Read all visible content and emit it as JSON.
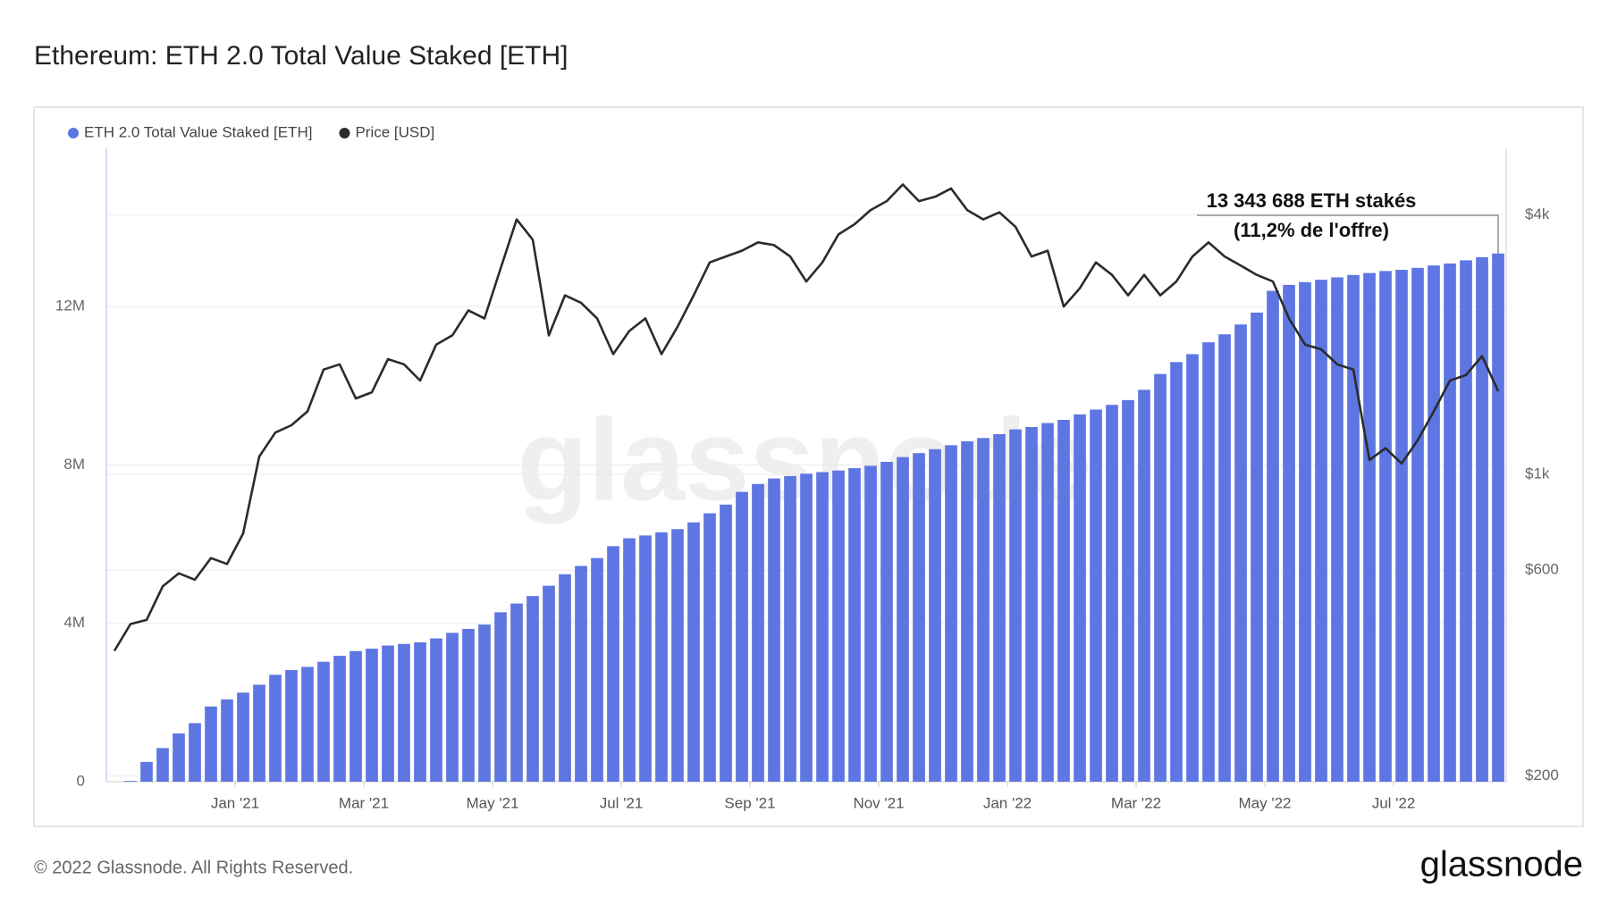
{
  "chart_data": {
    "type": "bar",
    "title": "Ethereum: ETH 2.0 Total Value Staked [ETH]",
    "categories": [
      null,
      null,
      null,
      null,
      null,
      null,
      null,
      null,
      "Jan '21",
      null,
      null,
      null,
      null,
      null,
      null,
      null,
      "Mar '21",
      null,
      null,
      null,
      null,
      null,
      null,
      null,
      "May '21",
      null,
      null,
      null,
      null,
      null,
      null,
      null,
      "Jul '21",
      null,
      null,
      null,
      null,
      null,
      null,
      null,
      "Sep '21",
      null,
      null,
      null,
      null,
      null,
      null,
      null,
      "Nov '21",
      null,
      null,
      null,
      null,
      null,
      null,
      null,
      "Jan '22",
      null,
      null,
      null,
      null,
      null,
      null,
      null,
      "Mar '22",
      null,
      null,
      null,
      null,
      null,
      null,
      null,
      "May '22",
      null,
      null,
      null,
      null,
      null,
      null,
      null,
      "Jul '22",
      null,
      null,
      null,
      null,
      null,
      null
    ],
    "series": [
      {
        "name": "ETH 2.0 Total Value Staked [ETH]",
        "color": "#5d76e2",
        "type": "bar",
        "values": [
          0,
          20000,
          500000,
          850000,
          1220000,
          1480000,
          1900000,
          2080000,
          2250000,
          2450000,
          2700000,
          2820000,
          2900000,
          3030000,
          3180000,
          3300000,
          3360000,
          3440000,
          3480000,
          3520000,
          3620000,
          3760000,
          3860000,
          3970000,
          4280000,
          4500000,
          4690000,
          4950000,
          5240000,
          5450000,
          5650000,
          5950000,
          6150000,
          6220000,
          6300000,
          6380000,
          6550000,
          6780000,
          7000000,
          7320000,
          7520000,
          7660000,
          7720000,
          7780000,
          7820000,
          7860000,
          7920000,
          7980000,
          8080000,
          8200000,
          8300000,
          8400000,
          8500000,
          8600000,
          8680000,
          8780000,
          8900000,
          8960000,
          9060000,
          9140000,
          9280000,
          9400000,
          9520000,
          9640000,
          9900000,
          10300000,
          10600000,
          10800000,
          11100000,
          11300000,
          11550000,
          11850000,
          12400000,
          12550000,
          12620000,
          12680000,
          12740000,
          12800000,
          12850000,
          12900000,
          12930000,
          12980000,
          13040000,
          13090000,
          13170000,
          13250000,
          13343688
        ]
      },
      {
        "name": "Price [USD]",
        "color": "#2b2b2b",
        "type": "line",
        "axis": "y2",
        "values": [
          390,
          450,
          460,
          550,
          590,
          570,
          640,
          620,
          730,
          1100,
          1250,
          1300,
          1400,
          1750,
          1800,
          1500,
          1550,
          1850,
          1800,
          1650,
          2000,
          2100,
          2400,
          2300,
          3000,
          3900,
          3500,
          2100,
          2600,
          2500,
          2300,
          1900,
          2150,
          2300,
          1900,
          2200,
          2600,
          3100,
          3200,
          3300,
          3450,
          3400,
          3200,
          2800,
          3100,
          3600,
          3800,
          4100,
          4300,
          4700,
          4300,
          4400,
          4600,
          4100,
          3900,
          4050,
          3750,
          3200,
          3300,
          2450,
          2700,
          3100,
          2900,
          2600,
          2900,
          2600,
          2800,
          3200,
          3450,
          3200,
          3050,
          2900,
          2800,
          2300,
          2000,
          1950,
          1800,
          1750,
          1080,
          1150,
          1060,
          1200,
          1400,
          1650,
          1700,
          1880,
          1560
        ]
      }
    ],
    "ylim": [
      0,
      16000000
    ],
    "yticks": [
      0,
      {
        "value": 4000000,
        "label": "4M"
      },
      {
        "value": 8000000,
        "label": "8M"
      },
      {
        "value": 12000000,
        "label": "12M"
      }
    ],
    "y2lim": [
      194,
      5700
    ],
    "y2scale": "log",
    "y2ticks": [
      {
        "value": 200,
        "label": "$200"
      },
      {
        "value": 600,
        "label": "$600"
      },
      {
        "value": 1000,
        "label": "$1k"
      },
      {
        "value": 4000,
        "label": "$4k"
      }
    ],
    "grid": true,
    "annotation": [
      "13 343 688 ETH stakés",
      "(11,2% de l'offre)"
    ]
  },
  "footer": "© 2022 Glassnode. All Rights Reserved.",
  "brand": "glassnode"
}
